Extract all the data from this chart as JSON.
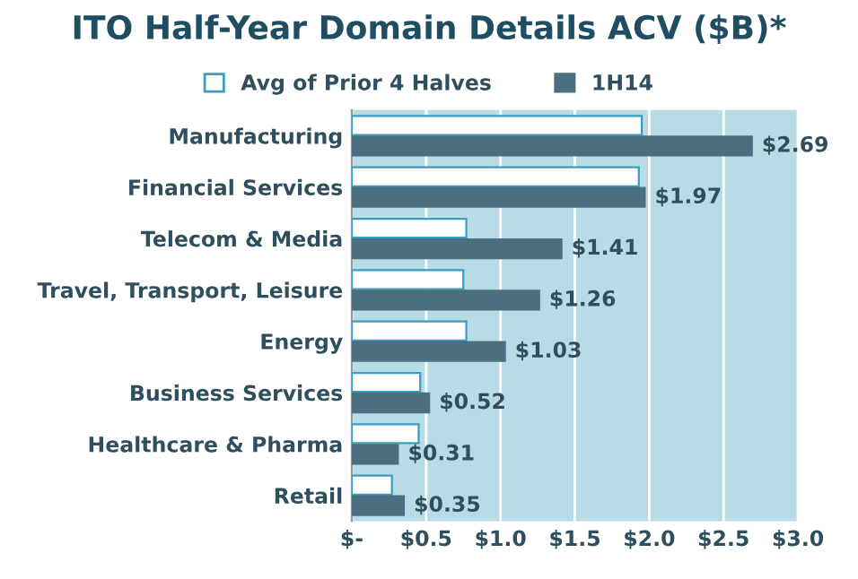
{
  "chart_data": {
    "type": "bar",
    "orientation": "horizontal",
    "title": "ITO Half-Year Domain Details ACV ($B)*",
    "categories": [
      "Manufacturing",
      "Financial Services",
      "Telecom & Media",
      "Travel, Transport, Leisure",
      "Energy",
      "Business Services",
      "Healthcare & Pharma",
      "Retail"
    ],
    "series": [
      {
        "name": "Avg of Prior 4 Halves",
        "color": "#ffffff",
        "values": [
          1.95,
          1.93,
          0.77,
          0.75,
          0.77,
          0.46,
          0.45,
          0.27
        ]
      },
      {
        "name": "1H14",
        "color": "#4a6f80",
        "values": [
          2.69,
          1.97,
          1.41,
          1.26,
          1.03,
          0.52,
          0.31,
          0.35
        ],
        "value_labels": [
          "$2.69",
          "$1.97",
          "$1.41",
          "$1.26",
          "$1.03",
          "$0.52",
          "$0.31",
          "$0.35"
        ]
      }
    ],
    "xlim": [
      0,
      3.0
    ],
    "xticks": [
      {
        "value": 0,
        "label": "$-"
      },
      {
        "value": 0.5,
        "label": "$0.5"
      },
      {
        "value": 1.0,
        "label": "$1.0"
      },
      {
        "value": 1.5,
        "label": "$1.5"
      },
      {
        "value": 2.0,
        "label": "$2.0"
      },
      {
        "value": 2.5,
        "label": "$2.5"
      },
      {
        "value": 3.0,
        "label": "$3.0"
      }
    ],
    "grid": "x",
    "legend": "top"
  }
}
